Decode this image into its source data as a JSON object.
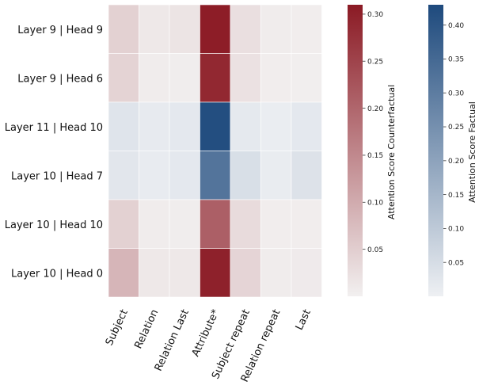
{
  "chart_data": {
    "type": "heatmap",
    "rows": [
      "Layer 9 | Head 9",
      "Layer 9 | Head 6",
      "Layer 11 | Head 10",
      "Layer 10 | Head 7",
      "Layer 10 | Head 10",
      "Layer 10 | Head 0"
    ],
    "columns": [
      "Subject",
      "Relation",
      "Relation Last",
      "Attribute*",
      "Subject repeat",
      "Relation repeat",
      "Last"
    ],
    "cells": [
      {
        "row": 0,
        "col": 0,
        "series": "counterfactual",
        "value": 0.045
      },
      {
        "row": 0,
        "col": 1,
        "series": "counterfactual",
        "value": 0.012
      },
      {
        "row": 0,
        "col": 2,
        "series": "counterfactual",
        "value": 0.018
      },
      {
        "row": 0,
        "col": 3,
        "series": "counterfactual",
        "value": 0.305
      },
      {
        "row": 0,
        "col": 4,
        "series": "counterfactual",
        "value": 0.025
      },
      {
        "row": 0,
        "col": 5,
        "series": "counterfactual",
        "value": 0.006
      },
      {
        "row": 0,
        "col": 6,
        "series": "counterfactual",
        "value": 0.004
      },
      {
        "row": 1,
        "col": 0,
        "series": "counterfactual",
        "value": 0.042
      },
      {
        "row": 1,
        "col": 1,
        "series": "counterfactual",
        "value": 0.006
      },
      {
        "row": 1,
        "col": 2,
        "series": "counterfactual",
        "value": 0.005
      },
      {
        "row": 1,
        "col": 3,
        "series": "counterfactual",
        "value": 0.29
      },
      {
        "row": 1,
        "col": 4,
        "series": "counterfactual",
        "value": 0.022
      },
      {
        "row": 1,
        "col": 5,
        "series": "counterfactual",
        "value": 0.004
      },
      {
        "row": 1,
        "col": 6,
        "series": "counterfactual",
        "value": 0.003
      },
      {
        "row": 2,
        "col": 0,
        "series": "factual",
        "value": 0.03
      },
      {
        "row": 2,
        "col": 1,
        "series": "factual",
        "value": 0.015
      },
      {
        "row": 2,
        "col": 2,
        "series": "factual",
        "value": 0.02
      },
      {
        "row": 2,
        "col": 3,
        "series": "factual",
        "value": 0.42
      },
      {
        "row": 2,
        "col": 4,
        "series": "factual",
        "value": 0.018
      },
      {
        "row": 2,
        "col": 5,
        "series": "factual",
        "value": 0.008
      },
      {
        "row": 2,
        "col": 6,
        "series": "factual",
        "value": 0.02
      },
      {
        "row": 3,
        "col": 0,
        "series": "factual",
        "value": 0.025
      },
      {
        "row": 3,
        "col": 1,
        "series": "factual",
        "value": 0.012
      },
      {
        "row": 3,
        "col": 2,
        "series": "factual",
        "value": 0.02
      },
      {
        "row": 3,
        "col": 3,
        "series": "factual",
        "value": 0.32
      },
      {
        "row": 3,
        "col": 4,
        "series": "factual",
        "value": 0.045
      },
      {
        "row": 3,
        "col": 5,
        "series": "factual",
        "value": 0.01
      },
      {
        "row": 3,
        "col": 6,
        "series": "factual",
        "value": 0.035
      },
      {
        "row": 4,
        "col": 0,
        "series": "counterfactual",
        "value": 0.045
      },
      {
        "row": 4,
        "col": 1,
        "series": "counterfactual",
        "value": 0.006
      },
      {
        "row": 4,
        "col": 2,
        "series": "counterfactual",
        "value": 0.005
      },
      {
        "row": 4,
        "col": 3,
        "series": "counterfactual",
        "value": 0.21
      },
      {
        "row": 4,
        "col": 4,
        "series": "counterfactual",
        "value": 0.03
      },
      {
        "row": 4,
        "col": 5,
        "series": "counterfactual",
        "value": 0.004
      },
      {
        "row": 4,
        "col": 6,
        "series": "counterfactual",
        "value": 0.004
      },
      {
        "row": 5,
        "col": 0,
        "series": "counterfactual",
        "value": 0.085
      },
      {
        "row": 5,
        "col": 1,
        "series": "counterfactual",
        "value": 0.012
      },
      {
        "row": 5,
        "col": 2,
        "series": "counterfactual",
        "value": 0.012
      },
      {
        "row": 5,
        "col": 3,
        "series": "counterfactual",
        "value": 0.3
      },
      {
        "row": 5,
        "col": 4,
        "series": "counterfactual",
        "value": 0.04
      },
      {
        "row": 5,
        "col": 5,
        "series": "counterfactual",
        "value": 0.006
      },
      {
        "row": 5,
        "col": 6,
        "series": "counterfactual",
        "value": 0.008
      }
    ],
    "colorbars": [
      {
        "name": "counterfactual",
        "label": "Attention Score Counterfactual",
        "min": 0,
        "max": 0.31,
        "color_low": "#f2f0f0",
        "color_high": "#8b1a24",
        "ticks": [
          0.05,
          0.1,
          0.15,
          0.2,
          0.25,
          0.3
        ],
        "tick_labels": [
          "0.05",
          "0.10",
          "0.15",
          "0.20",
          "0.25",
          "0.30"
        ]
      },
      {
        "name": "factual",
        "label": "Attention Score Factual",
        "min": 0,
        "max": 0.43,
        "color_low": "#eef0f3",
        "color_high": "#1e4a7d",
        "ticks": [
          0.05,
          0.1,
          0.15,
          0.2,
          0.25,
          0.3,
          0.35,
          0.4
        ],
        "tick_labels": [
          "0.05",
          "0.10",
          "0.15",
          "0.20",
          "0.25",
          "0.30",
          "0.35",
          "0.40"
        ]
      }
    ],
    "grid": false,
    "legend": "right"
  }
}
